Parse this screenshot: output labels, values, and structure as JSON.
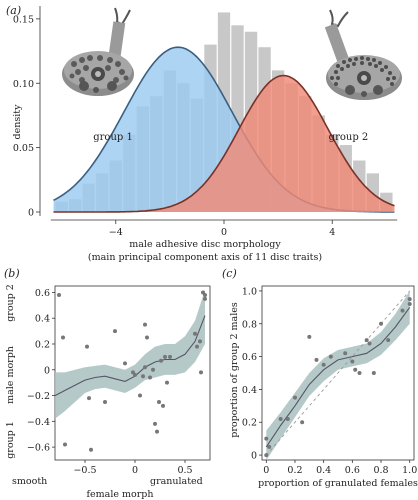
{
  "chart_data": [
    {
      "panel": "(a)",
      "type": "bar",
      "subtype": "histogram with two fitted normal curves",
      "xlabel": "male adhesive disc morphology",
      "xlabel_line2": "(main principal component axis of 11 disc traits)",
      "ylabel": "density",
      "xlim": [
        -6.8,
        6.8
      ],
      "ylim": [
        0,
        0.16
      ],
      "xticks": [
        -4,
        0,
        4
      ],
      "yticks": [
        0,
        0.05,
        0.1,
        0.15
      ],
      "ytick_labels": [
        "0",
        "0.05",
        "0.10",
        "0.15"
      ],
      "histogram": {
        "bin_width": 0.5,
        "bin_starts": [
          -6.25,
          -5.75,
          -5.25,
          -4.75,
          -4.25,
          -3.75,
          -3.25,
          -2.75,
          -2.25,
          -1.75,
          -1.25,
          -0.75,
          -0.25,
          0.25,
          0.75,
          1.25,
          1.75,
          2.25,
          2.75,
          3.25,
          3.75,
          4.25,
          4.75,
          5.25,
          5.75
        ],
        "densities": [
          0.008,
          0.01,
          0.022,
          0.03,
          0.04,
          0.06,
          0.082,
          0.09,
          0.11,
          0.1,
          0.088,
          0.13,
          0.155,
          0.145,
          0.14,
          0.128,
          0.11,
          0.1,
          0.09,
          0.075,
          0.06,
          0.052,
          0.04,
          0.03,
          0.015
        ],
        "color": "#c8c8c8"
      },
      "series": [
        {
          "name": "group 1",
          "mean": -1.7,
          "sd": 2.0,
          "peak": 0.128,
          "range": [
            -6.3,
            6.3
          ],
          "fill": "#9ccaf0",
          "line": "#3a5f80",
          "label_color": "#3d7ab8"
        },
        {
          "name": "group 2",
          "mean": 2.2,
          "sd": 1.65,
          "peak": 0.106,
          "range": [
            -6.3,
            6.3
          ],
          "fill": "#f08a78",
          "line": "#7a3128",
          "label_color": "#b85a44"
        }
      ],
      "icons": [
        "disc-smooth-illustration",
        "disc-granulated-illustration"
      ]
    },
    {
      "panel": "(b)",
      "type": "scatter",
      "subtype": "scatter with smoothed fit and confidence band",
      "xlabel": "female morph",
      "x_extra_labels": [
        "smooth",
        "granulated"
      ],
      "ylabel": "male morph",
      "y_extra_labels": [
        "group 2",
        "group 1"
      ],
      "xlim": [
        -0.8,
        0.75
      ],
      "ylim": [
        -0.7,
        0.65
      ],
      "xticks": [
        -0.5,
        0,
        0.5
      ],
      "xtick_labels": [
        "−0.5",
        "0",
        "0.5"
      ],
      "yticks": [
        -0.6,
        -0.4,
        -0.2,
        0,
        0.2,
        0.4,
        0.6
      ],
      "ytick_labels": [
        "−0.6",
        "−0.4",
        "−0.2",
        "0",
        "0.2",
        "0.4",
        "0.6"
      ],
      "points": [
        {
          "x": -0.76,
          "y": 0.58
        },
        {
          "x": -0.72,
          "y": 0.25
        },
        {
          "x": -0.7,
          "y": -0.58
        },
        {
          "x": -0.48,
          "y": 0.18
        },
        {
          "x": -0.46,
          "y": -0.22
        },
        {
          "x": -0.44,
          "y": -0.62
        },
        {
          "x": -0.3,
          "y": -0.25
        },
        {
          "x": -0.1,
          "y": 0.05
        },
        {
          "x": -0.02,
          "y": -0.02
        },
        {
          "x": 0.0,
          "y": -0.04
        },
        {
          "x": 0.05,
          "y": -0.2
        },
        {
          "x": 0.08,
          "y": -0.05
        },
        {
          "x": 0.1,
          "y": 0.02
        },
        {
          "x": 0.12,
          "y": 0.25
        },
        {
          "x": 0.15,
          "y": -0.06
        },
        {
          "x": 0.18,
          "y": 0.0
        },
        {
          "x": 0.2,
          "y": -0.42
        },
        {
          "x": 0.22,
          "y": -0.48
        },
        {
          "x": 0.24,
          "y": -0.25
        },
        {
          "x": 0.26,
          "y": 0.07
        },
        {
          "x": 0.3,
          "y": 0.1
        },
        {
          "x": 0.32,
          "y": -0.1
        },
        {
          "x": 0.35,
          "y": 0.1
        },
        {
          "x": 0.6,
          "y": 0.28
        },
        {
          "x": 0.62,
          "y": 0.18
        },
        {
          "x": 0.65,
          "y": 0.22
        },
        {
          "x": 0.66,
          "y": -0.02
        },
        {
          "x": 0.68,
          "y": 0.6
        },
        {
          "x": 0.7,
          "y": 0.55
        },
        {
          "x": 0.7,
          "y": 0.58
        },
        {
          "x": -0.2,
          "y": 0.3
        },
        {
          "x": 0.1,
          "y": 0.35
        },
        {
          "x": 0.28,
          "y": -0.28
        }
      ],
      "fit": {
        "x": [
          -0.8,
          -0.7,
          -0.6,
          -0.5,
          -0.4,
          -0.3,
          -0.2,
          -0.1,
          0.0,
          0.1,
          0.2,
          0.3,
          0.4,
          0.5,
          0.6,
          0.7
        ],
        "y": [
          -0.2,
          -0.16,
          -0.12,
          -0.08,
          -0.06,
          -0.05,
          -0.07,
          -0.09,
          -0.05,
          0.02,
          0.06,
          0.08,
          0.08,
          0.12,
          0.22,
          0.42
        ],
        "lower": [
          -0.38,
          -0.32,
          -0.25,
          -0.18,
          -0.15,
          -0.14,
          -0.16,
          -0.18,
          -0.14,
          -0.08,
          -0.06,
          -0.04,
          -0.04,
          -0.02,
          0.06,
          0.2
        ],
        "upper": [
          -0.02,
          -0.02,
          0.0,
          0.02,
          0.03,
          0.04,
          0.02,
          0.0,
          0.04,
          0.12,
          0.18,
          0.2,
          0.2,
          0.26,
          0.38,
          0.62
        ]
      },
      "band_color": "#a9bfbf",
      "line_color": "#556"
    },
    {
      "panel": "(c)",
      "type": "scatter",
      "subtype": "scatter with smoothed fit, confidence band and 1:1 reference line",
      "xlabel": "proportion of granulated females",
      "ylabel": "proportion of group 2 males",
      "xlim": [
        -0.03,
        1.03
      ],
      "ylim": [
        -0.03,
        1.03
      ],
      "xticks": [
        0,
        0.2,
        0.4,
        0.6,
        0.8,
        1.0
      ],
      "xtick_labels": [
        "0",
        "0.2",
        "0.4",
        "0.6",
        "0.8",
        "1.0"
      ],
      "yticks": [
        0,
        0.2,
        0.4,
        0.6,
        0.8,
        1.0
      ],
      "ytick_labels": [
        "0",
        "0.2",
        "0.4",
        "0.6",
        "0.8",
        "1.0"
      ],
      "points": [
        {
          "x": 0.0,
          "y": 0.0
        },
        {
          "x": 0.0,
          "y": 0.1
        },
        {
          "x": 0.02,
          "y": 0.05
        },
        {
          "x": 0.1,
          "y": 0.22
        },
        {
          "x": 0.15,
          "y": 0.22
        },
        {
          "x": 0.2,
          "y": 0.35
        },
        {
          "x": 0.25,
          "y": 0.2
        },
        {
          "x": 0.3,
          "y": 0.72
        },
        {
          "x": 0.35,
          "y": 0.58
        },
        {
          "x": 0.4,
          "y": 0.55
        },
        {
          "x": 0.45,
          "y": 0.6
        },
        {
          "x": 0.55,
          "y": 0.62
        },
        {
          "x": 0.6,
          "y": 0.57
        },
        {
          "x": 0.62,
          "y": 0.52
        },
        {
          "x": 0.65,
          "y": 0.5
        },
        {
          "x": 0.7,
          "y": 0.7
        },
        {
          "x": 0.72,
          "y": 0.68
        },
        {
          "x": 0.75,
          "y": 0.5
        },
        {
          "x": 0.8,
          "y": 0.8
        },
        {
          "x": 0.85,
          "y": 0.7
        },
        {
          "x": 0.95,
          "y": 0.88
        },
        {
          "x": 1.0,
          "y": 0.92
        },
        {
          "x": 1.0,
          "y": 0.95
        }
      ],
      "fit": {
        "x": [
          0,
          0.1,
          0.2,
          0.3,
          0.4,
          0.5,
          0.6,
          0.7,
          0.8,
          0.9,
          1.0
        ],
        "y": [
          0.05,
          0.18,
          0.3,
          0.43,
          0.52,
          0.58,
          0.6,
          0.62,
          0.68,
          0.78,
          0.9
        ],
        "lower": [
          -0.03,
          0.1,
          0.23,
          0.36,
          0.45,
          0.52,
          0.54,
          0.56,
          0.61,
          0.7,
          0.8
        ],
        "upper": [
          0.15,
          0.26,
          0.38,
          0.5,
          0.59,
          0.64,
          0.66,
          0.68,
          0.75,
          0.86,
          1.0
        ]
      },
      "reference_line": {
        "from": [
          0,
          0
        ],
        "to": [
          1,
          1
        ],
        "style": "dashed"
      },
      "band_color": "#a9bfbf",
      "line_color": "#556"
    }
  ]
}
